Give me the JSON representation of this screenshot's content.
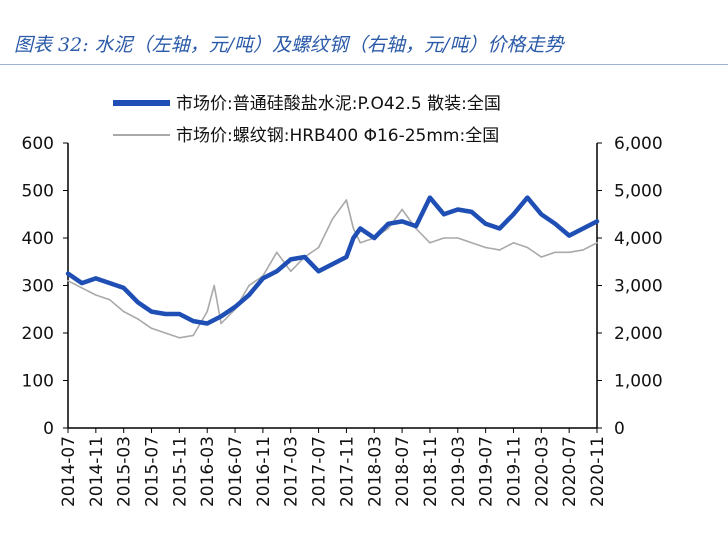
{
  "title": "图表 32: 水泥（左轴，元/吨）及螺纹钢（右轴，元/吨）价格走势",
  "chart_data": {
    "type": "line",
    "title": "图表 32: 水泥（左轴，元/吨）及螺纹钢（右轴，元/吨）价格走势",
    "x_ticks": [
      "2014-07",
      "2014-11",
      "2015-03",
      "2015-07",
      "2015-11",
      "2016-03",
      "2016-07",
      "2016-11",
      "2017-03",
      "2017-07",
      "2017-11",
      "2018-03",
      "2018-07",
      "2018-11",
      "2019-03",
      "2019-07",
      "2019-11",
      "2020-03",
      "2020-07",
      "2020-11"
    ],
    "y_left": {
      "ylim": [
        0,
        600
      ],
      "ticks": [
        "0",
        "100",
        "200",
        "300",
        "400",
        "500",
        "600"
      ]
    },
    "y_right": {
      "ylim": [
        0,
        6000
      ],
      "ticks": [
        "0",
        "1,000",
        "2,000",
        "3,000",
        "4,000",
        "5,000",
        "6,000"
      ]
    },
    "grid": false,
    "legend_position": "top",
    "series": [
      {
        "name": "市场价:普通硅酸盐水泥:P.O42.5 散装:全国",
        "axis": "left",
        "color": "#1f4fb5",
        "x": [
          "2014-07",
          "2014-09",
          "2014-11",
          "2015-01",
          "2015-03",
          "2015-05",
          "2015-07",
          "2015-09",
          "2015-11",
          "2016-01",
          "2016-03",
          "2016-05",
          "2016-07",
          "2016-09",
          "2016-11",
          "2017-01",
          "2017-03",
          "2017-05",
          "2017-07",
          "2017-09",
          "2017-11",
          "2017-12",
          "2018-01",
          "2018-03",
          "2018-05",
          "2018-07",
          "2018-09",
          "2018-11",
          "2019-01",
          "2019-03",
          "2019-05",
          "2019-07",
          "2019-09",
          "2019-11",
          "2020-01",
          "2020-03",
          "2020-05",
          "2020-07",
          "2020-09",
          "2020-11"
        ],
        "values": [
          325,
          305,
          315,
          305,
          295,
          265,
          245,
          240,
          240,
          225,
          220,
          235,
          255,
          280,
          315,
          330,
          355,
          360,
          330,
          345,
          360,
          400,
          420,
          400,
          430,
          435,
          425,
          485,
          450,
          460,
          455,
          430,
          420,
          450,
          485,
          450,
          430,
          405,
          420,
          435
        ]
      },
      {
        "name": "市场价:螺纹钢:HRB400 Φ16-25mm:全国",
        "axis": "right",
        "color": "#a9a9a9",
        "x": [
          "2014-07",
          "2014-09",
          "2014-11",
          "2015-01",
          "2015-03",
          "2015-05",
          "2015-07",
          "2015-09",
          "2015-11",
          "2016-01",
          "2016-03",
          "2016-04",
          "2016-05",
          "2016-07",
          "2016-09",
          "2016-11",
          "2017-01",
          "2017-03",
          "2017-05",
          "2017-07",
          "2017-09",
          "2017-11",
          "2017-12",
          "2018-01",
          "2018-03",
          "2018-05",
          "2018-07",
          "2018-09",
          "2018-11",
          "2019-01",
          "2019-03",
          "2019-05",
          "2019-07",
          "2019-09",
          "2019-11",
          "2020-01",
          "2020-03",
          "2020-05",
          "2020-07",
          "2020-09",
          "2020-11"
        ],
        "values": [
          3100,
          2950,
          2800,
          2700,
          2450,
          2300,
          2100,
          2000,
          1900,
          1950,
          2450,
          3000,
          2200,
          2500,
          3000,
          3200,
          3700,
          3300,
          3600,
          3800,
          4400,
          4800,
          4200,
          3900,
          4000,
          4200,
          4600,
          4200,
          3900,
          4000,
          4000,
          3900,
          3800,
          3750,
          3900,
          3800,
          3600,
          3700,
          3700,
          3750,
          3900
        ]
      }
    ]
  }
}
